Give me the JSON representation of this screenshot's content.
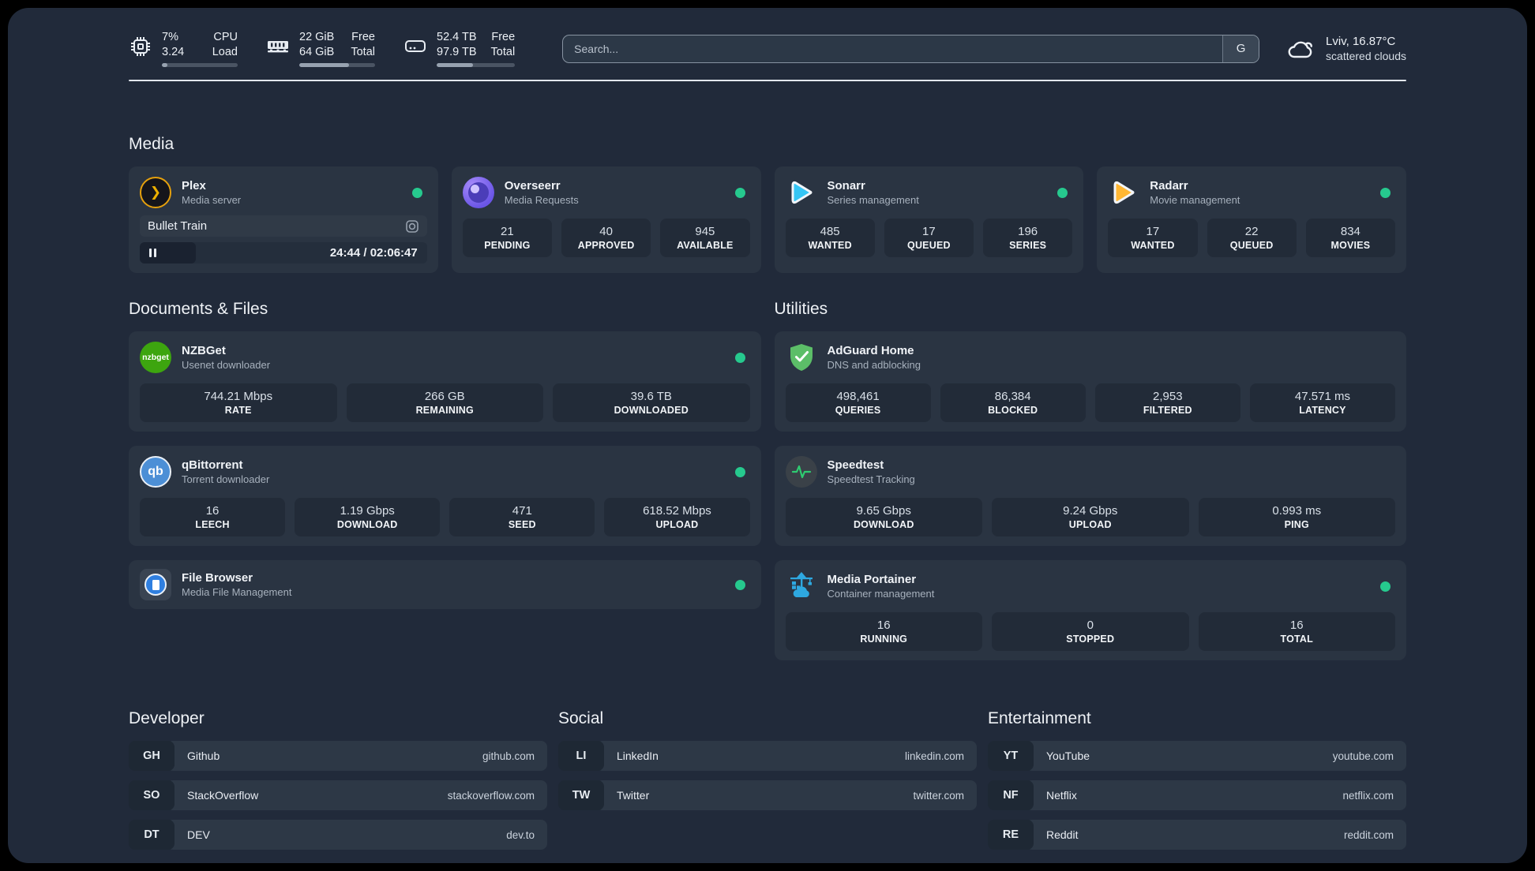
{
  "topbar": {
    "stats": [
      {
        "icon": "cpu-icon",
        "value_top": "7%",
        "value_bottom": "3.24",
        "label_top": "CPU",
        "label_bottom": "Load",
        "progress": 7
      },
      {
        "icon": "ram-icon",
        "value_top": "22 GiB",
        "value_bottom": "64 GiB",
        "label_top": "Free",
        "label_bottom": "Total",
        "progress": 66
      },
      {
        "icon": "disk-icon",
        "value_top": "52.4 TB",
        "value_bottom": "97.9 TB",
        "label_top": "Free",
        "label_bottom": "Total",
        "progress": 46
      }
    ],
    "search": {
      "placeholder": "Search...",
      "provider_button": "G"
    },
    "weather": {
      "location_temp": "Lviv, 16.87°C",
      "condition": "scattered clouds"
    }
  },
  "icons": {
    "plex_glyph": "❯",
    "nzbget_glyph": "nzbget",
    "qbittorrent_glyph": "qb"
  },
  "colors": {
    "status_online": "#26C98E",
    "plex_accent": "#E5A00D"
  },
  "media": {
    "heading": "Media",
    "plex": {
      "title": "Plex",
      "subtitle": "Media server",
      "now_playing": "Bullet Train",
      "time": "24:44 / 02:06:47",
      "progress_pct": 19.5
    },
    "overseerr": {
      "title": "Overseerr",
      "subtitle": "Media Requests",
      "stats": [
        {
          "value": "21",
          "label": "PENDING"
        },
        {
          "value": "40",
          "label": "APPROVED"
        },
        {
          "value": "945",
          "label": "AVAILABLE"
        }
      ]
    },
    "sonarr": {
      "title": "Sonarr",
      "subtitle": "Series management",
      "stats": [
        {
          "value": "485",
          "label": "WANTED"
        },
        {
          "value": "17",
          "label": "QUEUED"
        },
        {
          "value": "196",
          "label": "SERIES"
        }
      ]
    },
    "radarr": {
      "title": "Radarr",
      "subtitle": "Movie management",
      "stats": [
        {
          "value": "17",
          "label": "WANTED"
        },
        {
          "value": "22",
          "label": "QUEUED"
        },
        {
          "value": "834",
          "label": "MOVIES"
        }
      ]
    }
  },
  "documents": {
    "heading": "Documents & Files",
    "nzbget": {
      "title": "NZBGet",
      "subtitle": "Usenet downloader",
      "stats": [
        {
          "value": "744.21 Mbps",
          "label": "RATE"
        },
        {
          "value": "266 GB",
          "label": "REMAINING"
        },
        {
          "value": "39.6 TB",
          "label": "DOWNLOADED"
        }
      ]
    },
    "qbittorrent": {
      "title": "qBittorrent",
      "subtitle": "Torrent downloader",
      "stats": [
        {
          "value": "16",
          "label": "LEECH"
        },
        {
          "value": "1.19 Gbps",
          "label": "DOWNLOAD"
        },
        {
          "value": "471",
          "label": "SEED"
        },
        {
          "value": "618.52 Mbps",
          "label": "UPLOAD"
        }
      ]
    },
    "filebrowser": {
      "title": "File Browser",
      "subtitle": "Media File Management"
    }
  },
  "utilities": {
    "heading": "Utilities",
    "adguard": {
      "title": "AdGuard Home",
      "subtitle": "DNS and adblocking",
      "stats": [
        {
          "value": "498,461",
          "label": "QUERIES"
        },
        {
          "value": "86,384",
          "label": "BLOCKED"
        },
        {
          "value": "2,953",
          "label": "FILTERED"
        },
        {
          "value": "47.571 ms",
          "label": "LATENCY"
        }
      ]
    },
    "speedtest": {
      "title": "Speedtest",
      "subtitle": "Speedtest Tracking",
      "stats": [
        {
          "value": "9.65 Gbps",
          "label": "DOWNLOAD"
        },
        {
          "value": "9.24 Gbps",
          "label": "UPLOAD"
        },
        {
          "value": "0.993 ms",
          "label": "PING"
        }
      ]
    },
    "portainer": {
      "title": "Media Portainer",
      "subtitle": "Container management",
      "stats": [
        {
          "value": "16",
          "label": "RUNNING"
        },
        {
          "value": "0",
          "label": "STOPPED"
        },
        {
          "value": "16",
          "label": "TOTAL"
        }
      ]
    }
  },
  "links": {
    "developer": {
      "heading": "Developer",
      "items": [
        {
          "tag": "GH",
          "name": "Github",
          "url": "github.com"
        },
        {
          "tag": "SO",
          "name": "StackOverflow",
          "url": "stackoverflow.com"
        },
        {
          "tag": "DT",
          "name": "DEV",
          "url": "dev.to"
        }
      ]
    },
    "social": {
      "heading": "Social",
      "items": [
        {
          "tag": "LI",
          "name": "LinkedIn",
          "url": "linkedin.com"
        },
        {
          "tag": "TW",
          "name": "Twitter",
          "url": "twitter.com"
        }
      ]
    },
    "entertainment": {
      "heading": "Entertainment",
      "items": [
        {
          "tag": "YT",
          "name": "YouTube",
          "url": "youtube.com"
        },
        {
          "tag": "NF",
          "name": "Netflix",
          "url": "netflix.com"
        },
        {
          "tag": "RE",
          "name": "Reddit",
          "url": "reddit.com"
        }
      ]
    }
  }
}
